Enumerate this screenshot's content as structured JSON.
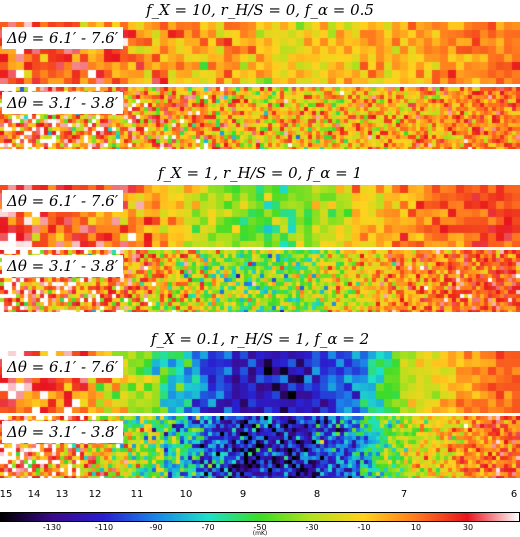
{
  "panels": [
    {
      "title": "f_X = 10,  r_H/S = 0,  f_α = 0.5",
      "maps": [
        {
          "label": "Δθ = 6.1′ - 7.6′"
        },
        {
          "label": "Δθ = 3.1′ - 3.8′"
        }
      ]
    },
    {
      "title": "f_X = 1,  r_H/S = 0,  f_α = 1",
      "maps": [
        {
          "label": "Δθ = 6.1′ - 7.6′"
        },
        {
          "label": "Δθ = 3.1′ - 3.8′"
        }
      ]
    },
    {
      "title": "f_X = 0.1,  r_H/S = 1,  f_α = 2",
      "maps": [
        {
          "label": "Δθ = 6.1′ - 7.6′"
        },
        {
          "label": "Δθ = 3.1′ - 3.8′"
        }
      ]
    }
  ],
  "redshift_axis": {
    "ticks": [
      "15",
      "14",
      "13",
      "12",
      "11",
      "10",
      "9",
      "8",
      "7",
      "6"
    ]
  },
  "colorbar": {
    "ticks": [
      "-130",
      "-110",
      "-90",
      "-70",
      "-50",
      "-30",
      "-10",
      "10",
      "30"
    ],
    "unit": "(mK)",
    "range": [
      -150,
      50
    ],
    "colors": [
      "#000000",
      "#3a0a8a",
      "#2a1fd0",
      "#1a86e8",
      "#1ee0c8",
      "#3cdc28",
      "#b4e01e",
      "#ffd21e",
      "#ff7a1e",
      "#e8141e",
      "#ffffff"
    ]
  },
  "temperature_profiles": [
    {
      "panel": 0,
      "z_min": 15,
      "z_max": 6,
      "profile_mK": [
        22,
        16,
        8,
        2,
        -5,
        -9,
        -8,
        -3,
        5,
        12
      ]
    },
    {
      "panel": 1,
      "z_min": 15,
      "z_max": 6,
      "profile_mK": [
        25,
        18,
        10,
        -10,
        -40,
        -45,
        -15,
        5,
        15,
        20
      ]
    },
    {
      "panel": 2,
      "z_min": 15,
      "z_max": 6,
      "profile_mK": [
        28,
        20,
        -15,
        -70,
        -115,
        -120,
        -95,
        -30,
        5,
        18
      ]
    }
  ]
}
